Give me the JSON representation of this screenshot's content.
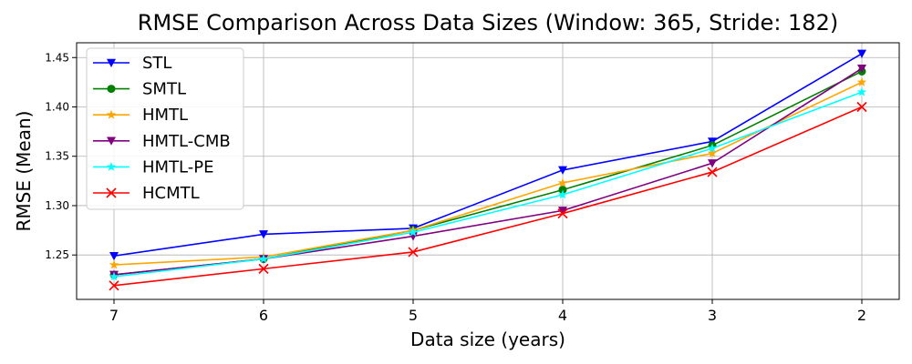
{
  "chart_data": {
    "type": "line",
    "title": "RMSE Comparison Across Data Sizes (Window: 365, Stride: 182)",
    "xlabel": "Data size (years)",
    "ylabel": "RMSE (Mean)",
    "categories": [
      "7",
      "6",
      "5",
      "4",
      "3",
      "2"
    ],
    "ylim": [
      1.205,
      1.465
    ],
    "yticks": [
      "1.25",
      "1.30",
      "1.35",
      "1.40",
      "1.45"
    ],
    "grid": true,
    "legend_position": "top-left",
    "series": [
      {
        "name": "STL",
        "color": "#0000ff",
        "marker": "triangle-down",
        "values": [
          1.249,
          1.271,
          1.277,
          1.336,
          1.365,
          1.454
        ]
      },
      {
        "name": "SMTL",
        "color": "#008000",
        "marker": "circle",
        "values": [
          1.23,
          1.246,
          1.275,
          1.316,
          1.361,
          1.436
        ]
      },
      {
        "name": "HMTL",
        "color": "#ffa500",
        "marker": "star",
        "values": [
          1.24,
          1.248,
          1.275,
          1.323,
          1.353,
          1.425
        ]
      },
      {
        "name": "HMTL-CMB",
        "color": "#800080",
        "marker": "triangle-down",
        "values": [
          1.23,
          1.246,
          1.269,
          1.295,
          1.343,
          1.439
        ]
      },
      {
        "name": "HMTL-PE",
        "color": "#00ffff",
        "marker": "star",
        "values": [
          1.228,
          1.246,
          1.273,
          1.311,
          1.358,
          1.415
        ]
      },
      {
        "name": "HCMTL",
        "color": "#ff0000",
        "marker": "x",
        "values": [
          1.219,
          1.236,
          1.253,
          1.292,
          1.334,
          1.4
        ]
      }
    ]
  }
}
